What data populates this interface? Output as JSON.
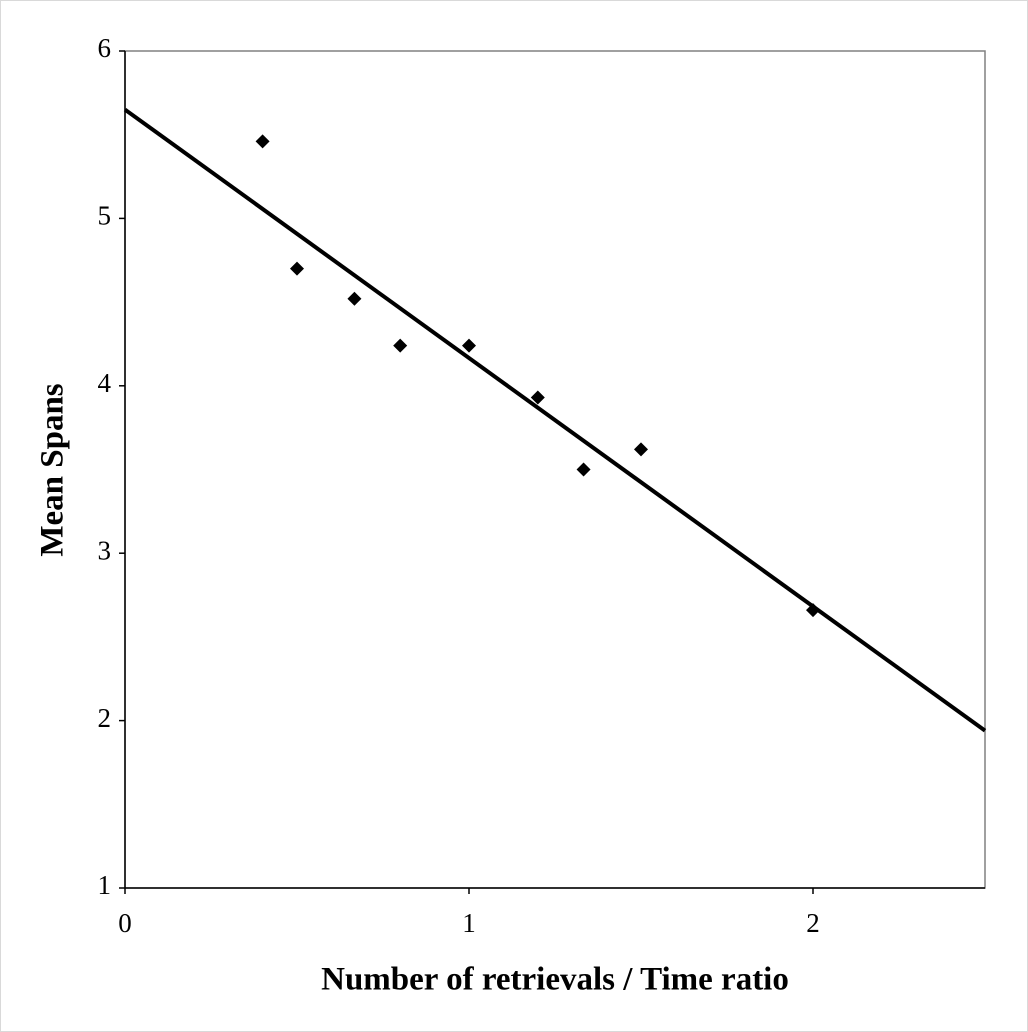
{
  "chart_data": {
    "type": "scatter",
    "x_label": "Number of retrievals / Time ratio",
    "y_label": "Mean Spans",
    "x": [
      0.4,
      0.5,
      0.667,
      0.8,
      1,
      1.2,
      1.333,
      1.5,
      2
    ],
    "values": [
      5.46,
      4.7,
      4.52,
      4.24,
      4.24,
      3.93,
      3.5,
      3.62,
      2.66
    ],
    "color": "#000000",
    "trendline": {
      "x": [
        0,
        2.5
      ],
      "values": [
        5.65,
        1.94
      ],
      "color": "#000000"
    },
    "xlim": [
      0,
      2.5
    ],
    "xticks": [
      0,
      1,
      2
    ],
    "ylim": [
      1,
      6
    ],
    "yticks": [
      1,
      2,
      3,
      4,
      5,
      6
    ],
    "grid": false
  }
}
